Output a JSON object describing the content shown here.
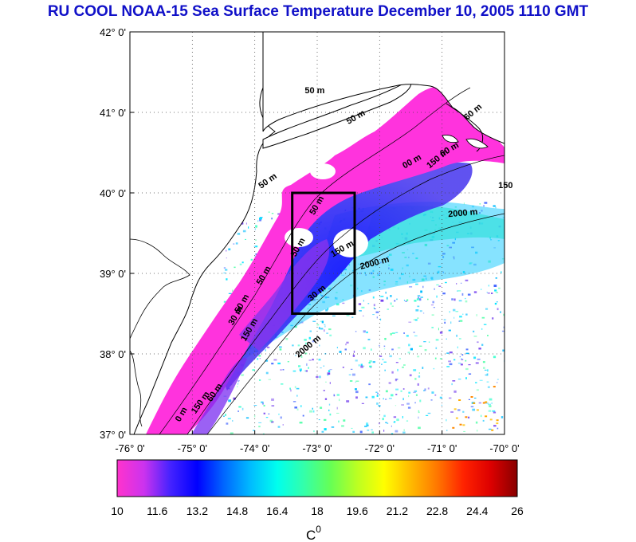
{
  "title": "RU COOL  NOAA-15 Sea Surface Temperature December 10, 2005 1110 GMT",
  "map": {
    "lat_labels": [
      "42° 0'",
      "41° 0'",
      "40° 0'",
      "39° 0'",
      "38° 0'",
      "37° 0'"
    ],
    "lon_labels": [
      "-76° 0'",
      "-75° 0'",
      "-74° 0'",
      "-73° 0'",
      "-72° 0'",
      "-71° 0'",
      "-70° 0'"
    ],
    "lat_range": [
      37,
      42
    ],
    "lon_range": [
      -76,
      -70
    ],
    "study_box": {
      "lon_min": -73.4,
      "lon_max": -72.4,
      "lat_min": 38.5,
      "lat_max": 40.0
    },
    "isobaths": [
      {
        "text": "50 m",
        "lon": -73.2,
        "lat": 41.24,
        "angle": 0
      },
      {
        "text": "50 m",
        "lon": -72.5,
        "lat": 40.85,
        "angle": -30
      },
      {
        "text": "60 m",
        "lon": -70.6,
        "lat": 40.9,
        "angle": -40
      },
      {
        "text": "60 m",
        "lon": -71.0,
        "lat": 40.45,
        "angle": -30
      },
      {
        "text": "00 m",
        "lon": -71.6,
        "lat": 40.3,
        "angle": -30
      },
      {
        "text": "150 m",
        "lon": -71.2,
        "lat": 40.3,
        "angle": -40
      },
      {
        "text": "150",
        "lon": -70.1,
        "lat": 40.06,
        "angle": 0
      },
      {
        "text": "50 m",
        "lon": -73.9,
        "lat": 40.05,
        "angle": -35
      },
      {
        "text": "50 m",
        "lon": -73.05,
        "lat": 39.72,
        "angle": -60
      },
      {
        "text": "2000 m",
        "lon": -70.9,
        "lat": 39.7,
        "angle": -5
      },
      {
        "text": "50 m",
        "lon": -73.35,
        "lat": 39.2,
        "angle": -60
      },
      {
        "text": "150 m",
        "lon": -72.75,
        "lat": 39.2,
        "angle": -30
      },
      {
        "text": "2000 m",
        "lon": -72.3,
        "lat": 39.05,
        "angle": -15
      },
      {
        "text": "50 m",
        "lon": -73.9,
        "lat": 38.85,
        "angle": -60
      },
      {
        "text": "30 m",
        "lon": -73.1,
        "lat": 38.65,
        "angle": -40
      },
      {
        "text": "50 m",
        "lon": -74.25,
        "lat": 38.5,
        "angle": -60
      },
      {
        "text": "30 m",
        "lon": -74.35,
        "lat": 38.35,
        "angle": -60
      },
      {
        "text": "150 m",
        "lon": -74.15,
        "lat": 38.15,
        "angle": -60
      },
      {
        "text": "2000 m",
        "lon": -73.3,
        "lat": 37.95,
        "angle": -40
      },
      {
        "text": "60 m",
        "lon": -74.7,
        "lat": 37.4,
        "angle": -55
      },
      {
        "text": "150 m",
        "lon": -74.95,
        "lat": 37.25,
        "angle": -55
      },
      {
        "text": "0 m",
        "lon": -75.2,
        "lat": 37.15,
        "angle": -60
      }
    ]
  },
  "colorbar": {
    "ticks": [
      "10",
      "11.6",
      "13.2",
      "14.8",
      "16.4",
      "18",
      "19.6",
      "21.2",
      "22.8",
      "24.4",
      "26"
    ],
    "range": [
      10,
      26
    ],
    "unit_base": "C",
    "unit_sup": "0",
    "stops": [
      "#ff33cc",
      "#cc33ee",
      "#4422ff",
      "#0000ff",
      "#0066ff",
      "#00bbff",
      "#00ffee",
      "#33ffaa",
      "#66ff55",
      "#bbff22",
      "#ffff00",
      "#ffbb00",
      "#ff7700",
      "#ff2200",
      "#dd0000",
      "#880000"
    ]
  },
  "colors": {
    "title": "#1010c8",
    "land": "#ffffff",
    "coast": "#000000",
    "grid": "#444444"
  }
}
